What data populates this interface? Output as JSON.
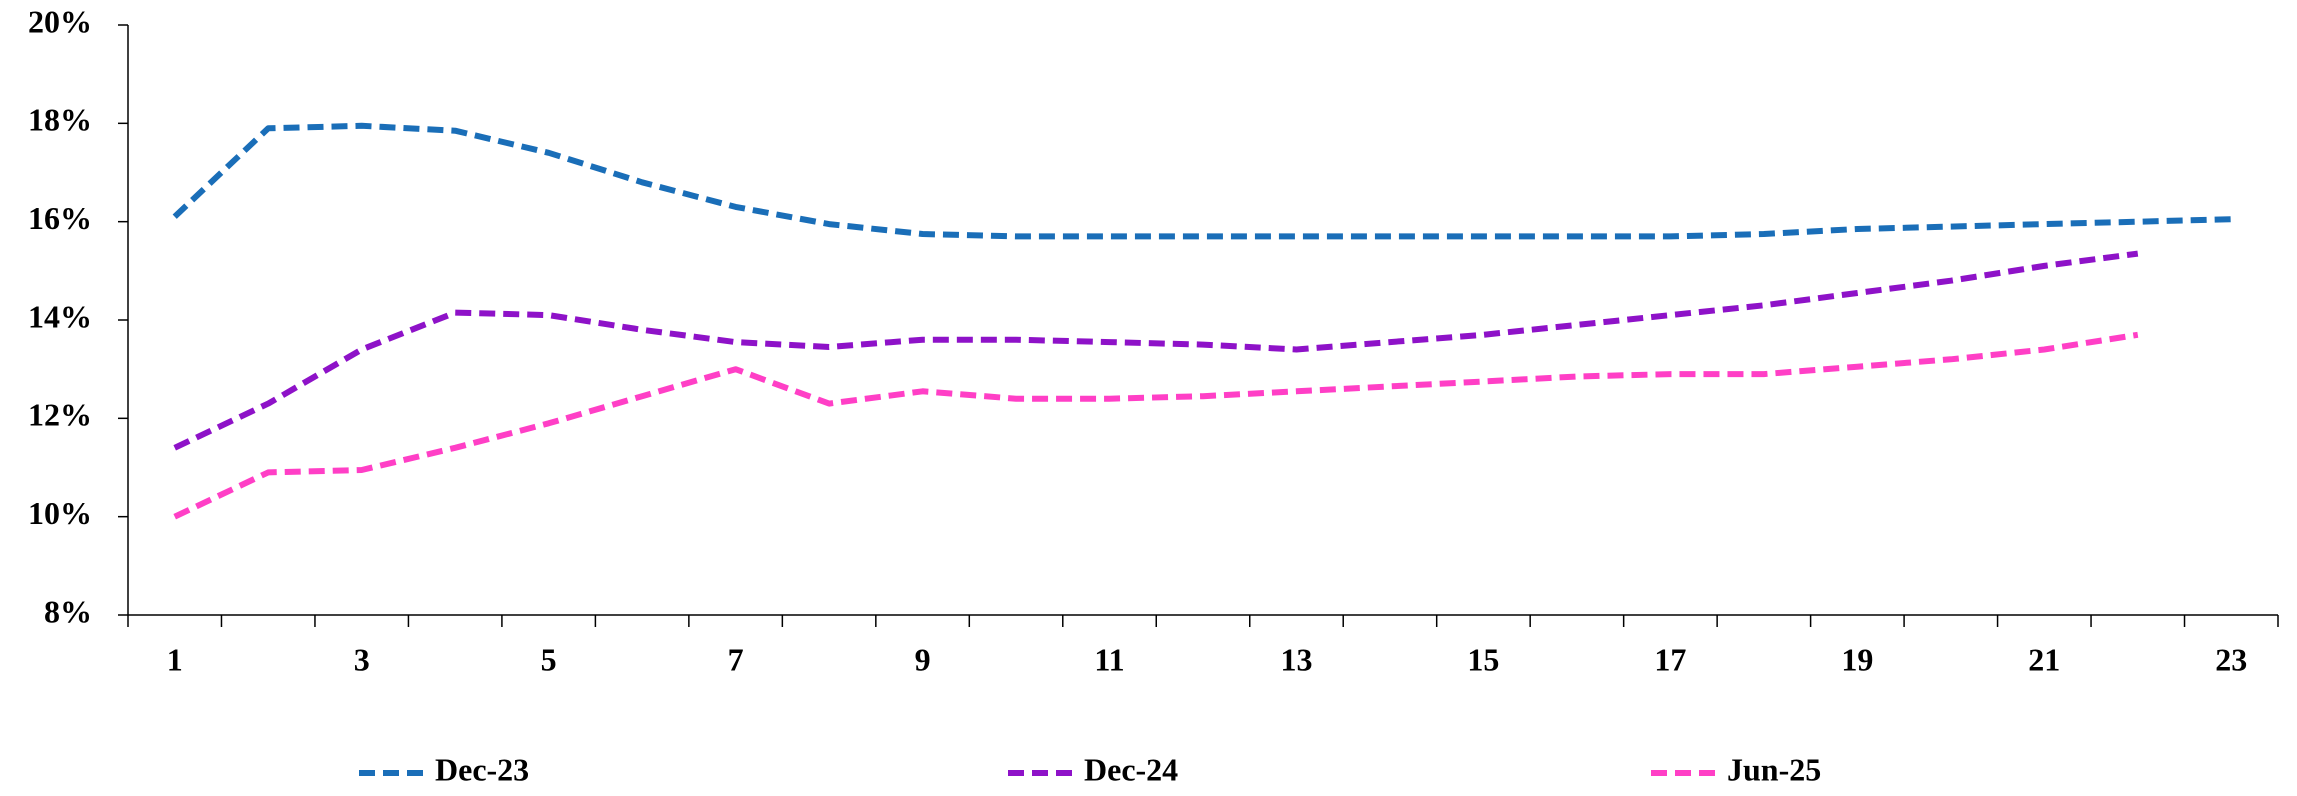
{
  "chart_data": {
    "type": "line",
    "categories": [
      "1",
      null,
      "3",
      null,
      "5",
      null,
      "7",
      null,
      "9",
      null,
      "11",
      null,
      "13",
      null,
      "15",
      null,
      "17",
      null,
      "19",
      null,
      "21",
      null,
      "23"
    ],
    "series": [
      {
        "name": "Dec-23",
        "color": "#1a6eb8",
        "values": [
          16.1,
          17.9,
          17.95,
          17.85,
          17.4,
          16.8,
          16.3,
          15.95,
          15.75,
          15.7,
          15.7,
          15.7,
          15.7,
          15.7,
          15.7,
          15.7,
          15.7,
          15.75,
          15.85,
          15.9,
          15.95,
          16.0,
          16.05
        ]
      },
      {
        "name": "Dec-24",
        "color": "#8e12c8",
        "values": [
          11.4,
          12.3,
          13.4,
          14.15,
          14.1,
          13.8,
          13.55,
          13.45,
          13.6,
          13.6,
          13.55,
          13.5,
          13.4,
          13.55,
          13.7,
          13.9,
          14.1,
          14.3,
          14.55,
          14.8,
          15.1,
          15.35,
          null
        ]
      },
      {
        "name": "Jun-25",
        "color": "#ff3fc6",
        "values": [
          10.0,
          10.9,
          10.95,
          11.4,
          11.9,
          12.45,
          13.0,
          12.3,
          12.55,
          12.4,
          12.4,
          12.45,
          12.55,
          12.65,
          12.75,
          12.85,
          12.9,
          12.9,
          13.05,
          13.2,
          13.4,
          13.7,
          null
        ]
      }
    ],
    "ylim": [
      8,
      20
    ],
    "yticks": [
      {
        "value": 8,
        "label": "8%"
      },
      {
        "value": 10,
        "label": "10%"
      },
      {
        "value": 12,
        "label": "12%"
      },
      {
        "value": 14,
        "label": "14%"
      },
      {
        "value": 16,
        "label": "16%"
      },
      {
        "value": 18,
        "label": "18%"
      },
      {
        "value": 20,
        "label": "20%"
      }
    ],
    "grid": false,
    "legend": "bottom"
  }
}
